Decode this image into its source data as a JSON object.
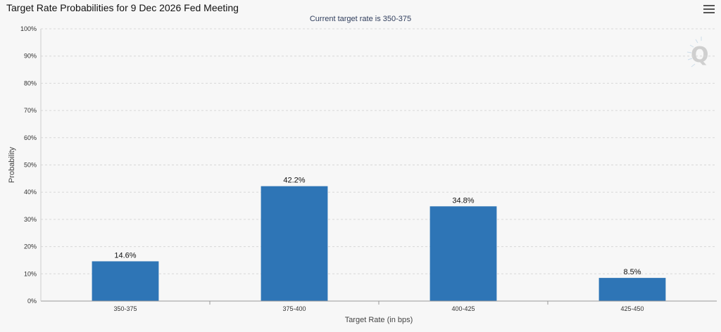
{
  "header": {
    "title": "Target Rate Probabilities for 9 Dec 2026 Fed Meeting",
    "subtitle": "Current target rate is 350-375"
  },
  "menu": {
    "icon": "hamburger-menu-icon"
  },
  "watermark": {
    "icon": "q-logo-icon",
    "text": "Q"
  },
  "chart_data": {
    "type": "bar",
    "title": "Target Rate Probabilities for 9 Dec 2026 Fed Meeting",
    "subtitle": "Current target rate is 350-375",
    "xlabel": "Target Rate (in bps)",
    "ylabel": "Probability",
    "categories": [
      "350-375",
      "375-400",
      "400-425",
      "425-450"
    ],
    "values": [
      14.6,
      42.2,
      34.8,
      8.5
    ],
    "data_labels": [
      "14.6%",
      "42.2%",
      "34.8%",
      "8.5%"
    ],
    "ylim": [
      0,
      100
    ],
    "yticks": [
      "0%",
      "10%",
      "20%",
      "30%",
      "40%",
      "50%",
      "60%",
      "70%",
      "80%",
      "90%",
      "100%"
    ],
    "grid": true,
    "legend": "none",
    "bar_color": "#2e75b6"
  }
}
